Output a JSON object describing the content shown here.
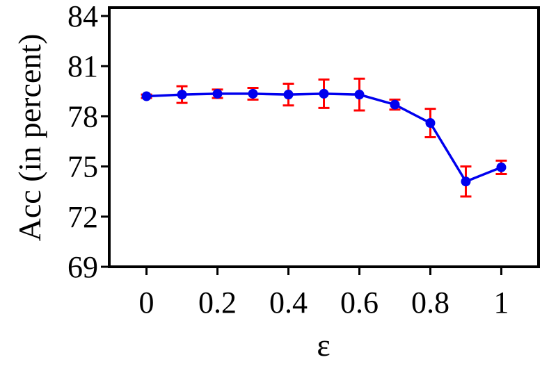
{
  "chart_data": {
    "type": "line",
    "title": "",
    "xlabel": "ε",
    "ylabel": "Acc (in percent)",
    "xlim": [
      -0.105,
      1.105
    ],
    "ylim": [
      69,
      84.5
    ],
    "x_ticks": [
      0,
      0.2,
      0.4,
      0.6,
      0.8,
      1
    ],
    "x_tick_labels": [
      "0",
      "0.2",
      "0.4",
      "0.6",
      "0.8",
      "1"
    ],
    "y_ticks": [
      69,
      72,
      75,
      78,
      81,
      84
    ],
    "y_tick_labels": [
      "69",
      "72",
      "75",
      "78",
      "81",
      "84"
    ],
    "grid": false,
    "legend": "none",
    "series": [
      {
        "x": [
          0,
          0.1,
          0.2,
          0.3,
          0.4,
          0.5,
          0.6,
          0.7,
          0.8,
          0.9,
          1
        ],
        "y": [
          79.2,
          79.3,
          79.35,
          79.35,
          79.3,
          79.35,
          79.3,
          78.7,
          77.6,
          74.1,
          74.95
        ],
        "error": [
          0.1,
          0.5,
          0.25,
          0.35,
          0.65,
          0.85,
          0.95,
          0.3,
          0.85,
          0.9,
          0.4
        ],
        "line_color": "#0000ee",
        "marker_color": "#0000ee",
        "error_color": "#ff0000"
      }
    ]
  }
}
